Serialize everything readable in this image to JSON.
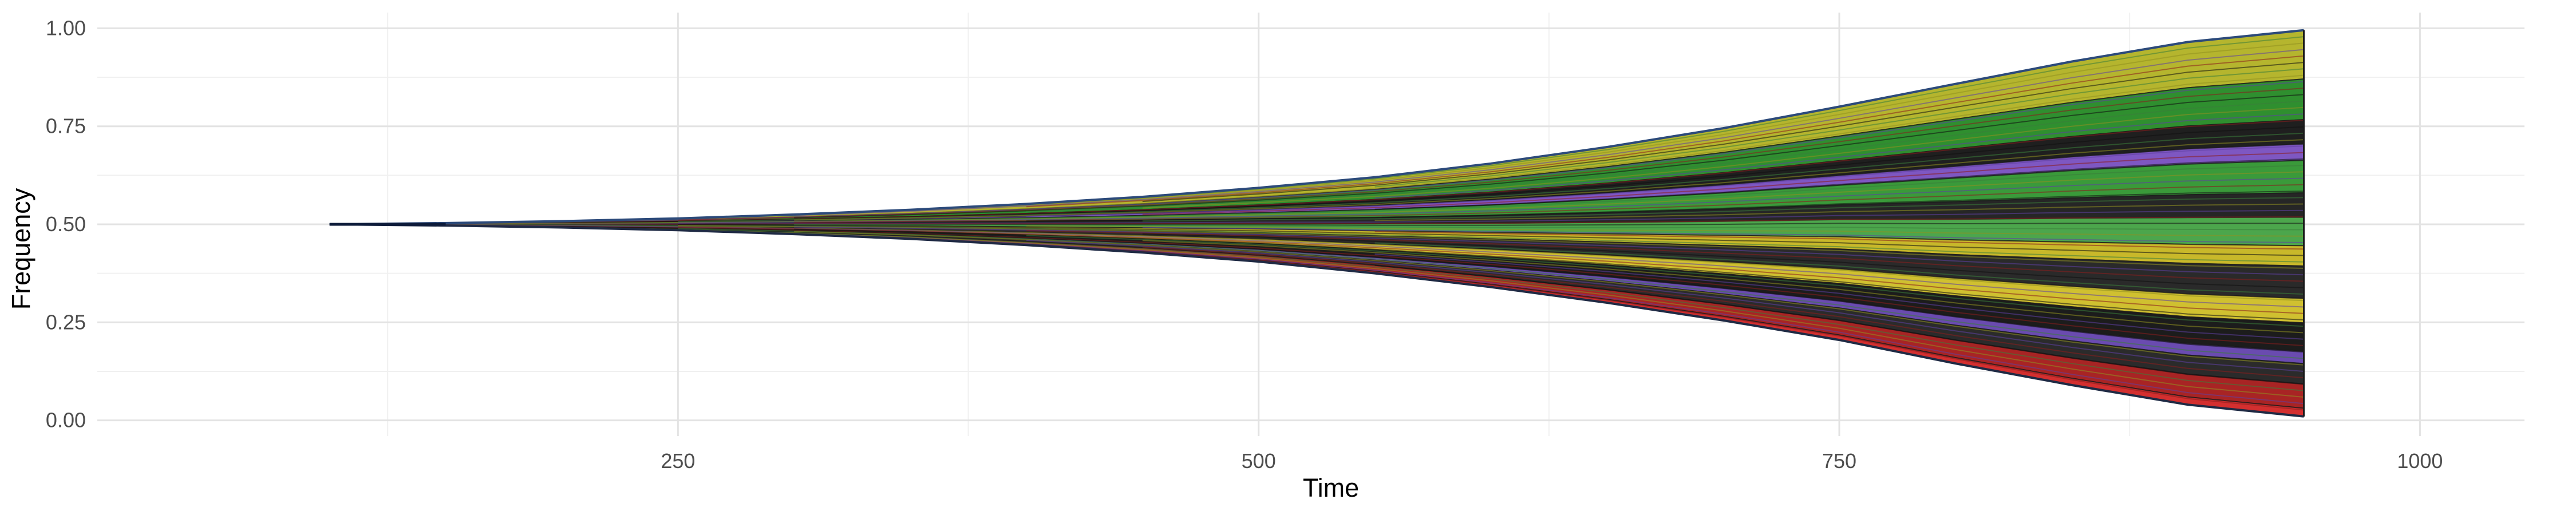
{
  "chart_data": {
    "type": "area",
    "title": "",
    "xlabel": "Time",
    "ylabel": "Frequency",
    "xlim": [
      0,
      1045
    ],
    "ylim": [
      -0.04,
      1.04
    ],
    "x_ticks": [
      {
        "value": 250,
        "label": "250"
      },
      {
        "value": 500,
        "label": "500"
      },
      {
        "value": 750,
        "label": "750"
      },
      {
        "value": 1000,
        "label": "1000"
      }
    ],
    "y_ticks": [
      {
        "value": 0.0,
        "label": "0.00"
      },
      {
        "value": 0.25,
        "label": "0.25"
      },
      {
        "value": 0.5,
        "label": "0.50"
      },
      {
        "value": 0.75,
        "label": "0.75"
      },
      {
        "value": 1.0,
        "label": "1.00"
      }
    ],
    "grid": true,
    "legend": "none",
    "x": [
      100,
      150,
      200,
      250,
      300,
      350,
      400,
      450,
      500,
      550,
      600,
      650,
      700,
      750,
      800,
      850,
      900,
      950
    ],
    "envelope": {
      "upper": [
        0.5,
        0.503,
        0.508,
        0.515,
        0.525,
        0.537,
        0.552,
        0.57,
        0.593,
        0.62,
        0.655,
        0.697,
        0.745,
        0.8,
        0.858,
        0.915,
        0.965,
        0.995
      ],
      "lower": [
        0.5,
        0.497,
        0.492,
        0.485,
        0.475,
        0.463,
        0.447,
        0.428,
        0.405,
        0.375,
        0.34,
        0.3,
        0.255,
        0.205,
        0.145,
        0.09,
        0.04,
        0.01
      ]
    },
    "bands": [
      {
        "group": "green",
        "color": "#b5b52e",
        "final_frac": 0.12
      },
      {
        "group": "green",
        "color": "#2f8f2f",
        "final_frac": 0.1
      },
      {
        "group": "green",
        "color": "#1f1f1f",
        "final_frac": 0.06
      },
      {
        "group": "purple",
        "color": "#7e57c2",
        "final_frac": 0.04
      },
      {
        "group": "green",
        "color": "#3a9a3a",
        "final_frac": 0.08
      },
      {
        "group": "green",
        "color": "#262626",
        "final_frac": 0.06
      },
      {
        "group": "green",
        "color": "#4ca64c",
        "final_frac": 0.07
      },
      {
        "group": "yellow",
        "color": "#c8b82a",
        "final_frac": 0.05
      },
      {
        "group": "yellow",
        "color": "#2a2a2a",
        "final_frac": 0.08
      },
      {
        "group": "yellow",
        "color": "#d0c030",
        "final_frac": 0.06
      },
      {
        "group": "yellow",
        "color": "#1c1c1c",
        "final_frac": 0.07
      },
      {
        "group": "purple",
        "color": "#6a4bb0",
        "final_frac": 0.03
      },
      {
        "group": "red",
        "color": "#2b2b2b",
        "final_frac": 0.05
      },
      {
        "group": "red",
        "color": "#a82424",
        "final_frac": 0.06
      },
      {
        "group": "red",
        "color": "#d32f2f",
        "final_frac": 0.02
      }
    ],
    "series_note_colors": {
      "outline": "#1f2a44",
      "top_edge": "#2c4a7a"
    }
  }
}
